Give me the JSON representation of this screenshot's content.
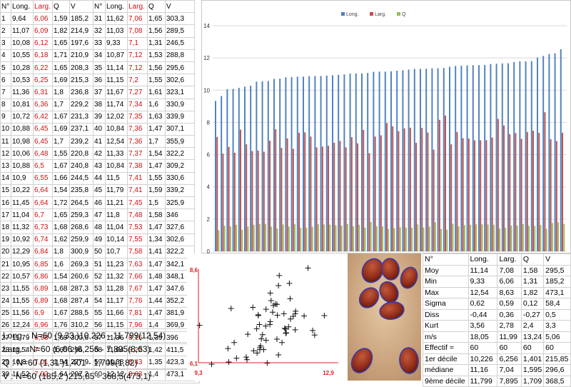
{
  "data_table": {
    "headers": [
      "N°",
      "Long.",
      "Larg.",
      "Q",
      "V",
      "N°",
      "Long.",
      "Larg.",
      "Q",
      "V"
    ],
    "rows": [
      [
        "1",
        "9,64",
        "6,06",
        "1,59",
        "185,2",
        "31",
        "11,62",
        "7,06",
        "1,65",
        "303,3"
      ],
      [
        "2",
        "11,07",
        "6,09",
        "1,82",
        "214,9",
        "32",
        "11,03",
        "7,08",
        "1,56",
        "289,5"
      ],
      [
        "3",
        "10,08",
        "6,12",
        "1,65",
        "197,6",
        "33",
        "9,33",
        "7,1",
        "1,31",
        "246,5"
      ],
      [
        "4",
        "10,55",
        "6,18",
        "1,71",
        "210,9",
        "34",
        "10,87",
        "7,12",
        "1,53",
        "288,8"
      ],
      [
        "5",
        "10,28",
        "6,22",
        "1,65",
        "208,3",
        "35",
        "11,14",
        "7,12",
        "1,56",
        "295,6"
      ],
      [
        "6",
        "10,53",
        "6,25",
        "1,69",
        "215,3",
        "36",
        "11,15",
        "7,2",
        "1,55",
        "302,6"
      ],
      [
        "7",
        "11,36",
        "6,31",
        "1,8",
        "236,8",
        "37",
        "11,67",
        "7,27",
        "1,61",
        "323,1"
      ],
      [
        "8",
        "10,81",
        "6,36",
        "1,7",
        "229,2",
        "38",
        "11,74",
        "7,34",
        "1,6",
        "330,9"
      ],
      [
        "9",
        "10,72",
        "6,42",
        "1,67",
        "231,3",
        "39",
        "12,02",
        "7,35",
        "1,63",
        "339,9"
      ],
      [
        "10",
        "10,88",
        "6,45",
        "1,69",
        "237,1",
        "40",
        "10,84",
        "7,36",
        "1,47",
        "307,1"
      ],
      [
        "11",
        "10,98",
        "6,45",
        "1,7",
        "239,2",
        "41",
        "12,54",
        "7,36",
        "1,7",
        "355,9"
      ],
      [
        "12",
        "10,06",
        "6,48",
        "1,55",
        "220,8",
        "42",
        "11,33",
        "7,37",
        "1,54",
        "322,2"
      ],
      [
        "13",
        "10,88",
        "6,5",
        "1,67",
        "240,8",
        "43",
        "10,84",
        "7,38",
        "1,47",
        "309,2"
      ],
      [
        "14",
        "10,9",
        "6,55",
        "1,66",
        "244,5",
        "44",
        "11,5",
        "7,41",
        "1,55",
        "330,6"
      ],
      [
        "15",
        "10,22",
        "6,64",
        "1,54",
        "235,8",
        "45",
        "11,79",
        "7,41",
        "1,59",
        "339,2"
      ],
      [
        "16",
        "11,45",
        "6,64",
        "1,72",
        "264,5",
        "46",
        "11,21",
        "7,45",
        "1,5",
        "325,9"
      ],
      [
        "17",
        "11,04",
        "6,7",
        "1,65",
        "259,3",
        "47",
        "11,8",
        "7,48",
        "1,58",
        "346"
      ],
      [
        "18",
        "11,32",
        "6,73",
        "1,68",
        "268,6",
        "48",
        "11,04",
        "7,53",
        "1,47",
        "327,6"
      ],
      [
        "19",
        "10,92",
        "6,74",
        "1,62",
        "259,9",
        "49",
        "10,14",
        "7,55",
        "1,34",
        "302,6"
      ],
      [
        "20",
        "12,29",
        "6,84",
        "1,8",
        "300,9",
        "50",
        "10,7",
        "7,58",
        "1,41",
        "322,2"
      ],
      [
        "21",
        "10,95",
        "6,85",
        "1,6",
        "269,3",
        "51",
        "11,23",
        "7,63",
        "1,47",
        "342,1"
      ],
      [
        "22",
        "10,57",
        "6,86",
        "1,54",
        "260,6",
        "52",
        "11,32",
        "7,66",
        "1,48",
        "348,1"
      ],
      [
        "23",
        "11,55",
        "6,89",
        "1,68",
        "287,3",
        "53",
        "11,28",
        "7,67",
        "1,47",
        "347,6"
      ],
      [
        "24",
        "11,55",
        "6,89",
        "1,68",
        "287,4",
        "54",
        "11,17",
        "7,76",
        "1,44",
        "352,2"
      ],
      [
        "25",
        "11,56",
        "6,9",
        "1,67",
        "288,5",
        "55",
        "11,66",
        "7,81",
        "1,47",
        "381,9"
      ],
      [
        "26",
        "12,24",
        "6,96",
        "1,76",
        "310,2",
        "56",
        "11,15",
        "7,96",
        "1,4",
        "369,9"
      ],
      [
        "27",
        "11,79",
        "6,98",
        "1,69",
        "300,6",
        "57",
        "11,36",
        "8,16",
        "1,39",
        "396"
      ],
      [
        "28",
        "11,54",
        "7",
        "1,65",
        "296",
        "58",
        "11,64",
        "8,22",
        "1,42",
        "411,5"
      ],
      [
        "29",
        "10,8",
        "7,01",
        "1,54",
        "277,9",
        "59",
        "11,38",
        "8,43",
        "1,35",
        "423,3"
      ],
      [
        "30",
        "11,52",
        "7,02",
        "1,64",
        "297,2",
        "60",
        "12,12",
        "8,63",
        "1,4",
        "473,1"
      ]
    ]
  },
  "summary": [
    "Long. : N=60  (9,33 )10,226 - 11,799(12,54)",
    "Larg. : N=60  (6,06 )6,256 - 7,895(8,63)",
    "Q : N=60  (1,31 )1,401 - 1,709(1,82)",
    "V : N=60  (185,2 )215,85 - 368,5(473,1)"
  ],
  "stats_table": {
    "headers": [
      "N°",
      "Long.",
      "Larg.",
      "Q",
      "V"
    ],
    "rows": [
      [
        "Moy",
        "11,14",
        "7,08",
        "1,58",
        "295,5"
      ],
      [
        "Min",
        "9,33",
        "6,06",
        "1,31",
        "185,2"
      ],
      [
        "Max",
        "12,54",
        "8,63",
        "1,82",
        "473,1"
      ],
      [
        "Sigma",
        "0,62",
        "0,59",
        "0,12",
        "58,4"
      ],
      [
        "Diss",
        "-0,44",
        "0,36",
        "-0,27",
        "0,5"
      ],
      [
        "Kurt",
        "3,56",
        "2,78",
        "2,4",
        "3,3"
      ],
      [
        "m/s",
        "18,05",
        "11,99",
        "13,24",
        "5,06"
      ],
      [
        "Effectif =",
        "60",
        "60",
        "60",
        "60"
      ],
      [
        "1er décile",
        "10,226",
        "6,256",
        "1,401",
        "215,85"
      ],
      [
        "médiane",
        "11,16",
        "7,04",
        "1,595",
        "296,6"
      ],
      [
        "9ème décile",
        "11,799",
        "7,895",
        "1,709",
        "368,5"
      ]
    ]
  },
  "colors": {
    "long": "#4f81bd",
    "larg": "#c0504d",
    "q": "#9bbb59",
    "scatter_axis": "#e02020",
    "text_red": "#d01010"
  },
  "chart_data": [
    {
      "type": "bar",
      "title": "",
      "xlabel": "",
      "ylabel": "",
      "ylim": [
        0,
        14
      ],
      "y_ticks": [
        "0",
        "2",
        "4",
        "6",
        "8",
        "10",
        "12",
        "14"
      ],
      "grid": true,
      "legend_position": "top",
      "series": [
        {
          "name": "Long.",
          "values": [
            9.33,
            9.64,
            10.06,
            10.08,
            10.14,
            10.22,
            10.28,
            10.53,
            10.55,
            10.57,
            10.7,
            10.72,
            10.8,
            10.81,
            10.84,
            10.84,
            10.87,
            10.88,
            10.88,
            10.9,
            10.92,
            10.95,
            10.98,
            11.03,
            11.04,
            11.04,
            11.07,
            11.14,
            11.15,
            11.15,
            11.17,
            11.21,
            11.23,
            11.28,
            11.32,
            11.32,
            11.33,
            11.36,
            11.36,
            11.38,
            11.45,
            11.5,
            11.52,
            11.54,
            11.55,
            11.55,
            11.56,
            11.62,
            11.64,
            11.66,
            11.67,
            11.74,
            11.79,
            11.79,
            11.8,
            12.02,
            12.12,
            12.24,
            12.29,
            12.54
          ]
        },
        {
          "name": "Larg.",
          "values": [
            7.1,
            6.06,
            6.48,
            6.12,
            7.55,
            6.64,
            6.22,
            6.25,
            6.18,
            6.86,
            7.58,
            6.42,
            7.01,
            6.36,
            7.36,
            7.38,
            7.12,
            6.45,
            6.5,
            6.55,
            6.74,
            6.85,
            6.45,
            7.08,
            6.7,
            7.53,
            6.09,
            7.12,
            7.2,
            7.96,
            7.76,
            7.45,
            7.63,
            7.67,
            6.73,
            7.66,
            7.37,
            6.31,
            8.16,
            8.43,
            6.64,
            7.41,
            7.02,
            7,
            6.89,
            6.89,
            6.9,
            7.06,
            8.22,
            7.81,
            7.27,
            7.34,
            6.98,
            7.41,
            7.48,
            7.35,
            8.63,
            6.96,
            6.84,
            7.36
          ]
        },
        {
          "name": "Q",
          "values": [
            1.31,
            1.59,
            1.55,
            1.65,
            1.34,
            1.54,
            1.65,
            1.69,
            1.71,
            1.54,
            1.41,
            1.67,
            1.54,
            1.7,
            1.47,
            1.47,
            1.53,
            1.69,
            1.67,
            1.66,
            1.62,
            1.6,
            1.7,
            1.56,
            1.65,
            1.47,
            1.82,
            1.56,
            1.55,
            1.4,
            1.44,
            1.5,
            1.47,
            1.47,
            1.68,
            1.48,
            1.54,
            1.8,
            1.39,
            1.35,
            1.72,
            1.55,
            1.64,
            1.65,
            1.68,
            1.68,
            1.67,
            1.65,
            1.42,
            1.47,
            1.61,
            1.6,
            1.69,
            1.59,
            1.58,
            1.63,
            1.4,
            1.76,
            1.8,
            1.7
          ]
        }
      ]
    },
    {
      "type": "scatter",
      "title": "",
      "xlabel": "",
      "ylabel": "",
      "xlim": [
        9.3,
        12.9
      ],
      "ylim": [
        6.1,
        8.6
      ],
      "x_tick_labels": [
        "9,3",
        "12,9"
      ],
      "y_tick_labels": [
        "6,1",
        "8,6"
      ],
      "points": [
        [
          9.64,
          6.06
        ],
        [
          11.07,
          6.09
        ],
        [
          10.08,
          6.12
        ],
        [
          10.55,
          6.18
        ],
        [
          10.28,
          6.22
        ],
        [
          10.53,
          6.25
        ],
        [
          11.36,
          6.31
        ],
        [
          10.81,
          6.36
        ],
        [
          10.72,
          6.42
        ],
        [
          10.88,
          6.45
        ],
        [
          10.98,
          6.45
        ],
        [
          10.06,
          6.48
        ],
        [
          10.88,
          6.5
        ],
        [
          10.9,
          6.55
        ],
        [
          10.22,
          6.64
        ],
        [
          11.45,
          6.64
        ],
        [
          11.04,
          6.7
        ],
        [
          11.32,
          6.73
        ],
        [
          10.92,
          6.74
        ],
        [
          12.29,
          6.84
        ],
        [
          10.95,
          6.85
        ],
        [
          10.57,
          6.86
        ],
        [
          11.55,
          6.89
        ],
        [
          11.55,
          6.89
        ],
        [
          11.56,
          6.9
        ],
        [
          12.24,
          6.96
        ],
        [
          11.79,
          6.98
        ],
        [
          11.54,
          7
        ],
        [
          10.8,
          7.01
        ],
        [
          11.52,
          7.02
        ],
        [
          11.62,
          7.06
        ],
        [
          11.03,
          7.08
        ],
        [
          9.33,
          7.1
        ],
        [
          10.87,
          7.12
        ],
        [
          11.14,
          7.12
        ],
        [
          11.15,
          7.2
        ],
        [
          11.67,
          7.27
        ],
        [
          11.74,
          7.34
        ],
        [
          12.02,
          7.35
        ],
        [
          10.84,
          7.36
        ],
        [
          12.54,
          7.36
        ],
        [
          11.33,
          7.37
        ],
        [
          10.84,
          7.38
        ],
        [
          11.5,
          7.41
        ],
        [
          11.79,
          7.41
        ],
        [
          11.21,
          7.45
        ],
        [
          11.8,
          7.48
        ],
        [
          11.04,
          7.53
        ],
        [
          10.14,
          7.55
        ],
        [
          10.7,
          7.58
        ],
        [
          11.23,
          7.63
        ],
        [
          11.32,
          7.66
        ],
        [
          11.28,
          7.67
        ],
        [
          11.17,
          7.76
        ],
        [
          11.66,
          7.81
        ],
        [
          11.15,
          7.96
        ],
        [
          11.36,
          8.16
        ],
        [
          11.64,
          8.22
        ],
        [
          11.38,
          8.43
        ],
        [
          12.12,
          8.63
        ]
      ]
    }
  ]
}
